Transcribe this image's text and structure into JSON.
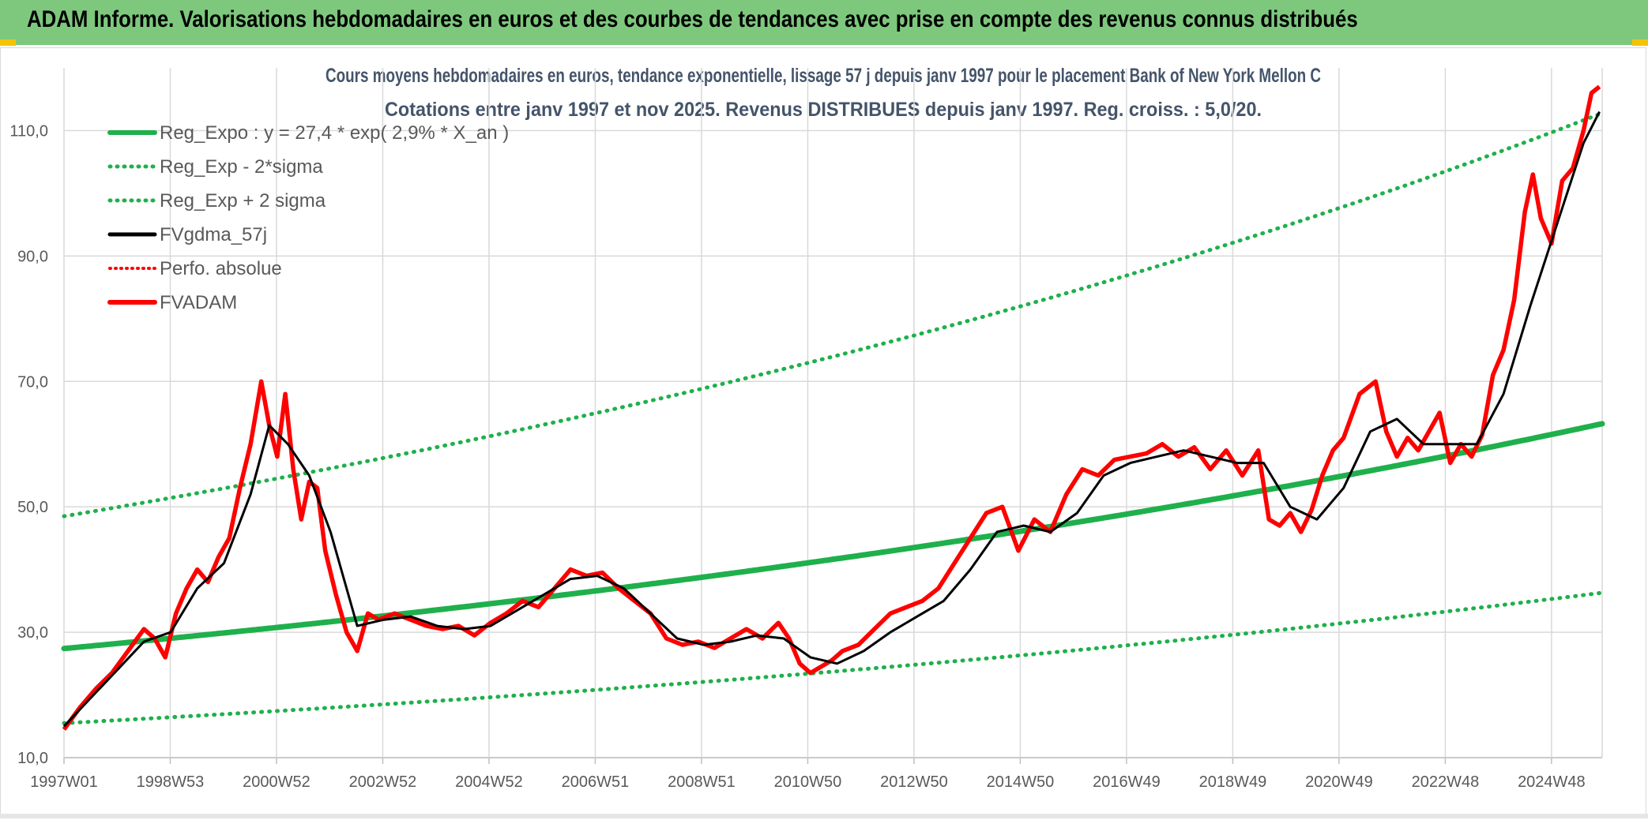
{
  "header": {
    "title": "ADAM Informe. Valorisations hebdomadaires en euros et des courbes de tendances avec prise en compte des revenus connus distribués"
  },
  "colors": {
    "banner": "#7dc87d",
    "reg_line": "#1fb04c",
    "sigma_lines": "#1fb04c",
    "smooth_line": "#000000",
    "fvadam_line": "#ff0000",
    "grid": "#d9d9d9",
    "title_text": "#44546a"
  },
  "chart_data": {
    "type": "line",
    "title": "Cours moyens hebdomadaires en euros, tendance exponentielle, lissage 57 j depuis janv 1997 pour le placement Bank of New York Mellon C",
    "subtitle": "Cotations entre janv 1997 et nov 2025. Revenus DISTRIBUES depuis janv 1997. Reg. croiss. : 5,0/20.",
    "xlabel": "",
    "ylabel": "",
    "x_tick_labels": [
      "1997W01",
      "1998W53",
      "2000W52",
      "2002W52",
      "2004W52",
      "2006W51",
      "2008W51",
      "2010W50",
      "2012W50",
      "2014W50",
      "2016W49",
      "2018W49",
      "2020W49",
      "2022W48",
      "2024W48"
    ],
    "y_tick_labels": [
      "10,0",
      "30,0",
      "50,0",
      "70,0",
      "90,0",
      "110,0"
    ],
    "ylim": [
      10,
      120
    ],
    "xlim": [
      1997.0,
      2025.85
    ],
    "grid": true,
    "legend_position": "top-left",
    "legend": [
      {
        "label": "Reg_Expo : y = 27,4 * exp( 2,9% *  X_an )",
        "style": "solid-green"
      },
      {
        "label": "Reg_Exp - 2*sigma",
        "style": "dotted-green"
      },
      {
        "label": "Reg_Exp + 2 sigma",
        "style": "dotted-green"
      },
      {
        "label": "FVgdma_57j",
        "style": "solid-black"
      },
      {
        "label": "Perfo. absolue",
        "style": "dotted-red"
      },
      {
        "label": "FVADAM",
        "style": "solid-red"
      }
    ],
    "regression": {
      "a": 27.4,
      "rate": 0.029,
      "start": 1997.0
    },
    "sigma_band": {
      "lower_start": 15.5,
      "lower_end": 36.3,
      "upper_start": 48.5,
      "upper_end": 112.8
    },
    "series": [
      {
        "name": "FVADAM",
        "x": [
          1997.0,
          1997.3,
          1997.6,
          1997.9,
          1998.2,
          1998.5,
          1998.7,
          1998.9,
          1999.1,
          1999.3,
          1999.5,
          1999.7,
          1999.9,
          2000.1,
          2000.3,
          2000.5,
          2000.7,
          2000.85,
          2001.0,
          2001.15,
          2001.3,
          2001.45,
          2001.6,
          2001.75,
          2001.9,
          2002.1,
          2002.3,
          2002.5,
          2002.7,
          2002.9,
          2003.2,
          2003.5,
          2003.8,
          2004.1,
          2004.4,
          2004.7,
          2005.0,
          2005.3,
          2005.6,
          2005.9,
          2006.2,
          2006.5,
          2006.8,
          2007.1,
          2007.4,
          2007.7,
          2008.0,
          2008.3,
          2008.6,
          2008.9,
          2009.2,
          2009.5,
          2009.8,
          2010.1,
          2010.4,
          2010.6,
          2010.8,
          2011.0,
          2011.2,
          2011.4,
          2011.6,
          2011.9,
          2012.2,
          2012.5,
          2012.8,
          2013.1,
          2013.4,
          2013.7,
          2014.0,
          2014.3,
          2014.6,
          2014.9,
          2015.2,
          2015.5,
          2015.8,
          2016.1,
          2016.4,
          2016.7,
          2017.0,
          2017.3,
          2017.6,
          2017.9,
          2018.2,
          2018.5,
          2018.8,
          2019.1,
          2019.4,
          2019.6,
          2019.8,
          2020.0,
          2020.2,
          2020.4,
          2020.6,
          2020.8,
          2021.0,
          2021.3,
          2021.6,
          2021.8,
          2022.0,
          2022.2,
          2022.4,
          2022.6,
          2022.8,
          2023.0,
          2023.2,
          2023.4,
          2023.6,
          2023.8,
          2024.0,
          2024.2,
          2024.4,
          2024.55,
          2024.7,
          2024.9,
          2025.1,
          2025.3,
          2025.5,
          2025.65,
          2025.8
        ],
        "values": [
          14.5,
          18.0,
          21.0,
          23.5,
          27.0,
          30.5,
          29.0,
          26.0,
          33.0,
          37.0,
          40.0,
          38.0,
          42.0,
          45.0,
          53.0,
          60.0,
          70.0,
          63.0,
          58.0,
          68.0,
          56.0,
          48.0,
          54.0,
          53.0,
          43.0,
          36.0,
          30.0,
          27.0,
          33.0,
          32.0,
          33.0,
          32.0,
          31.0,
          30.5,
          31.0,
          29.5,
          31.5,
          33.0,
          35.0,
          34.0,
          37.0,
          40.0,
          39.0,
          39.5,
          37.0,
          35.0,
          33.0,
          29.0,
          28.0,
          28.5,
          27.5,
          29.0,
          30.5,
          29.0,
          31.5,
          29.0,
          25.0,
          23.5,
          24.5,
          25.5,
          27.0,
          28.0,
          30.5,
          33.0,
          34.0,
          35.0,
          37.0,
          41.0,
          45.0,
          49.0,
          50.0,
          43.0,
          48.0,
          46.0,
          52.0,
          56.0,
          55.0,
          57.5,
          58.0,
          58.5,
          60.0,
          58.0,
          59.5,
          56.0,
          59.0,
          55.0,
          59.0,
          48.0,
          47.0,
          49.0,
          46.0,
          49.5,
          55.0,
          59.0,
          61.0,
          68.0,
          70.0,
          62.0,
          58.0,
          61.0,
          59.0,
          62.0,
          65.0,
          57.0,
          60.0,
          58.0,
          61.5,
          71.0,
          75.0,
          83.0,
          97.0,
          103.0,
          96.0,
          92.0,
          102.0,
          104.0,
          110.0,
          116.0,
          117.0
        ]
      },
      {
        "name": "FVgdma_57j",
        "x": [
          1997.0,
          1997.5,
          1998.0,
          1998.5,
          1999.0,
          1999.5,
          2000.0,
          2000.5,
          2000.85,
          2001.2,
          2001.6,
          2002.0,
          2002.5,
          2003.0,
          2003.5,
          2004.0,
          2004.5,
          2005.0,
          2005.5,
          2006.0,
          2006.5,
          2007.0,
          2007.5,
          2008.0,
          2008.5,
          2009.0,
          2009.5,
          2010.0,
          2010.5,
          2011.0,
          2011.5,
          2012.0,
          2012.5,
          2013.0,
          2013.5,
          2014.0,
          2014.5,
          2015.0,
          2015.5,
          2016.0,
          2016.5,
          2017.0,
          2017.5,
          2018.0,
          2018.5,
          2019.0,
          2019.5,
          2020.0,
          2020.5,
          2021.0,
          2021.5,
          2022.0,
          2022.5,
          2023.0,
          2023.5,
          2024.0,
          2024.5,
          2025.0,
          2025.5,
          2025.8
        ],
        "values": [
          15.0,
          19.5,
          24.0,
          28.5,
          30.0,
          37.0,
          41.0,
          52.0,
          63.0,
          60.0,
          55.0,
          46.0,
          31.0,
          32.0,
          32.5,
          31.0,
          30.5,
          31.0,
          33.5,
          36.0,
          38.5,
          39.0,
          37.0,
          33.0,
          29.0,
          28.0,
          28.5,
          29.5,
          29.0,
          26.0,
          25.0,
          27.0,
          30.0,
          32.5,
          35.0,
          40.0,
          46.0,
          47.0,
          46.0,
          49.0,
          55.0,
          57.0,
          58.0,
          59.0,
          58.0,
          57.0,
          57.0,
          50.0,
          48.0,
          53.0,
          62.0,
          64.0,
          60.0,
          60.0,
          60.0,
          68.0,
          82.0,
          95.0,
          108.0,
          113.0
        ]
      }
    ]
  }
}
